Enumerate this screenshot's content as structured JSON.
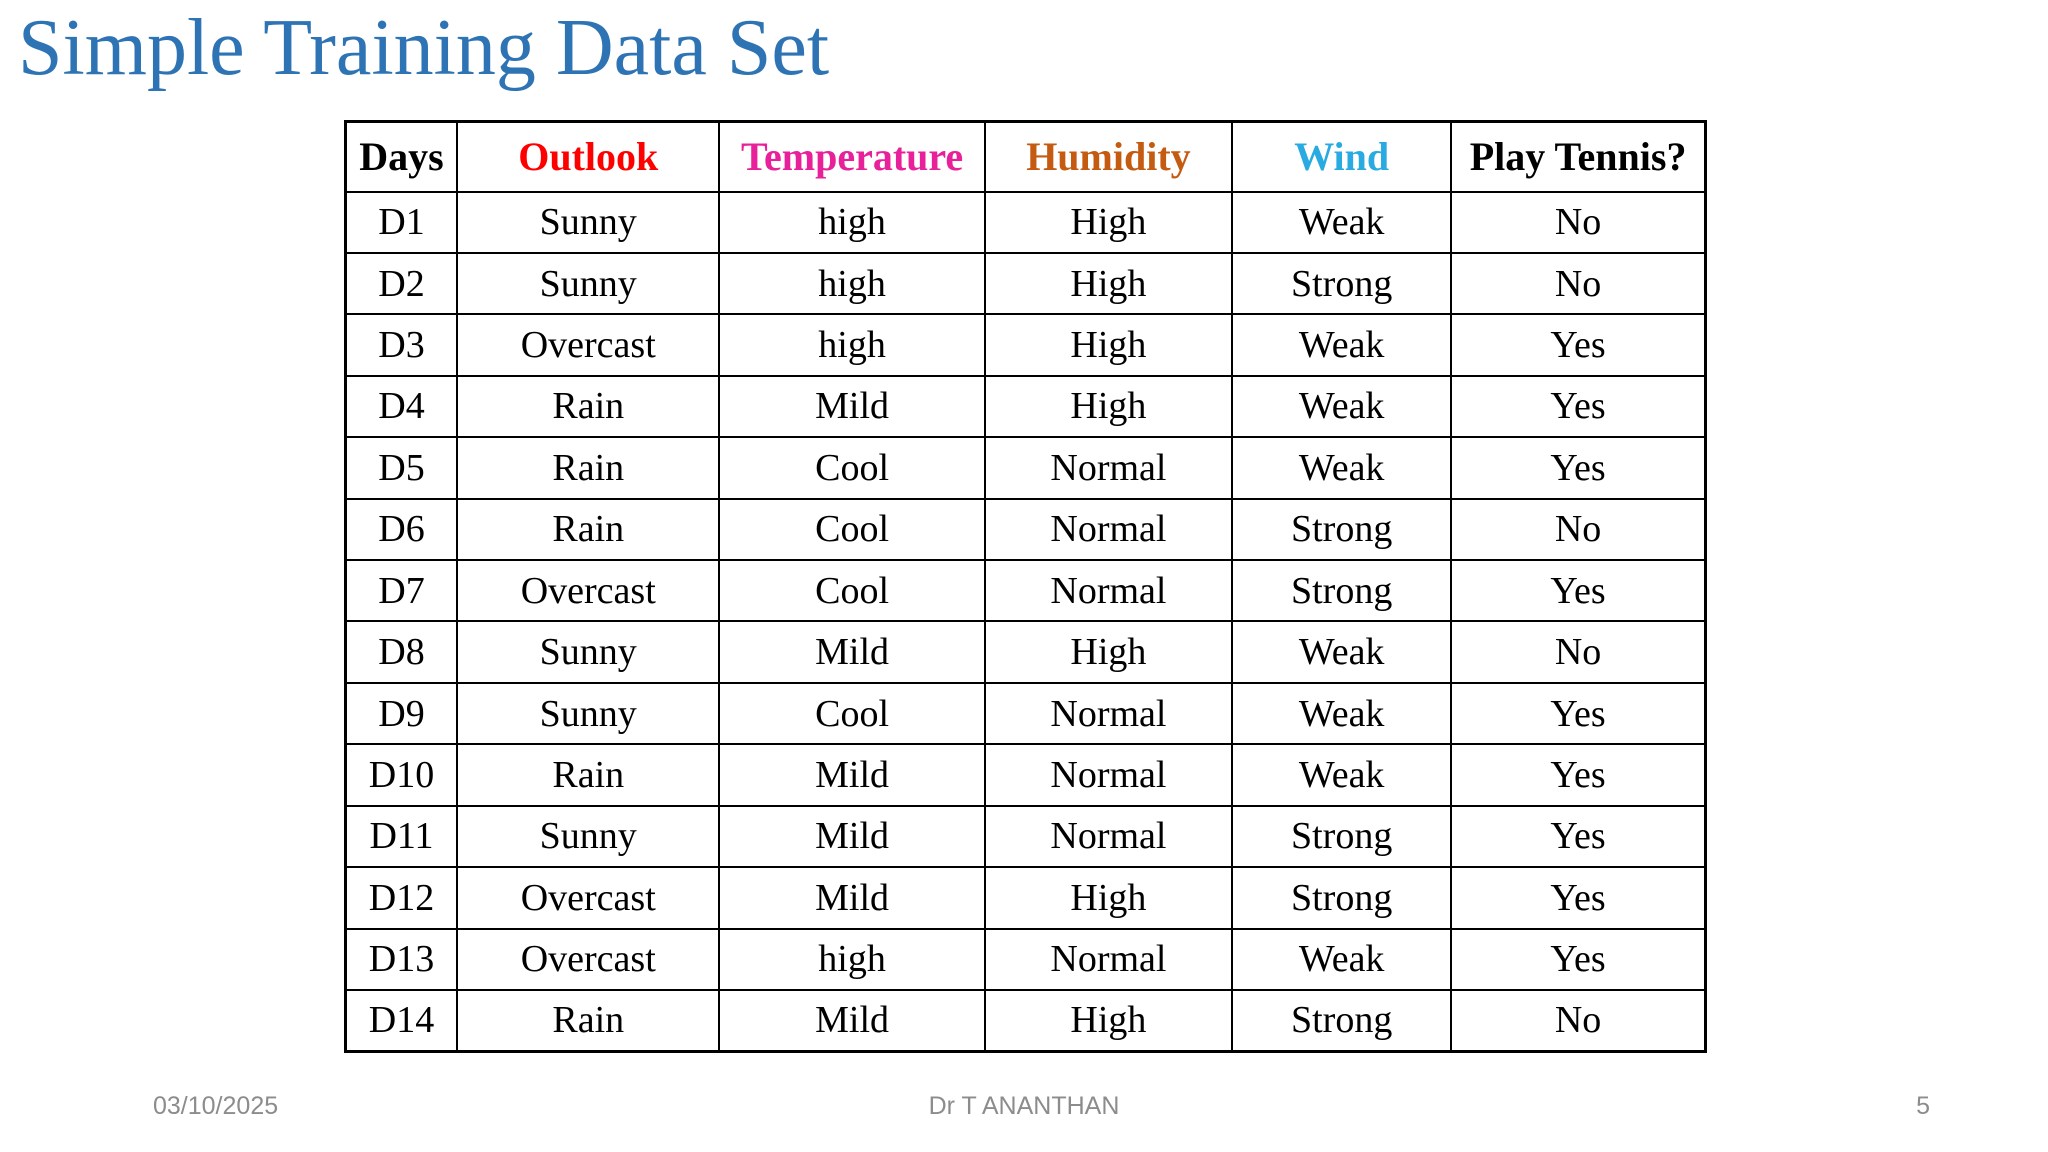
{
  "slide": {
    "title": "Simple Training Data Set",
    "title_color": "#2E74B5"
  },
  "table": {
    "columns": [
      {
        "label": "Days",
        "color": "#000000"
      },
      {
        "label": "Outlook",
        "color": "#FF0000"
      },
      {
        "label": "Temperature",
        "color": "#E8219B"
      },
      {
        "label": "Humidity",
        "color": "#C55A11"
      },
      {
        "label": "Wind",
        "color": "#29ABE2"
      },
      {
        "label": "Play Tennis?",
        "color": "#000000"
      }
    ],
    "rows": [
      [
        "D1",
        "Sunny",
        "high",
        "High",
        "Weak",
        "No"
      ],
      [
        "D2",
        "Sunny",
        "high",
        "High",
        "Strong",
        "No"
      ],
      [
        "D3",
        "Overcast",
        "high",
        "High",
        "Weak",
        "Yes"
      ],
      [
        "D4",
        "Rain",
        "Mild",
        "High",
        "Weak",
        "Yes"
      ],
      [
        "D5",
        "Rain",
        "Cool",
        "Normal",
        "Weak",
        "Yes"
      ],
      [
        "D6",
        "Rain",
        "Cool",
        "Normal",
        "Strong",
        "No"
      ],
      [
        "D7",
        "Overcast",
        "Cool",
        "Normal",
        "Strong",
        "Yes"
      ],
      [
        "D8",
        "Sunny",
        "Mild",
        "High",
        "Weak",
        "No"
      ],
      [
        "D9",
        "Sunny",
        "Cool",
        "Normal",
        "Weak",
        "Yes"
      ],
      [
        "D10",
        "Rain",
        "Mild",
        "Normal",
        "Weak",
        "Yes"
      ],
      [
        "D11",
        "Sunny",
        "Mild",
        "Normal",
        "Strong",
        "Yes"
      ],
      [
        "D12",
        "Overcast",
        "Mild",
        "High",
        "Strong",
        "Yes"
      ],
      [
        "D13",
        "Overcast",
        "high",
        "Normal",
        "Weak",
        "Yes"
      ],
      [
        "D14",
        "Rain",
        "Mild",
        "High",
        "Strong",
        "No"
      ]
    ]
  },
  "footer": {
    "date": "03/10/2025",
    "author": "Dr T ANANTHAN",
    "page_number": "5"
  }
}
